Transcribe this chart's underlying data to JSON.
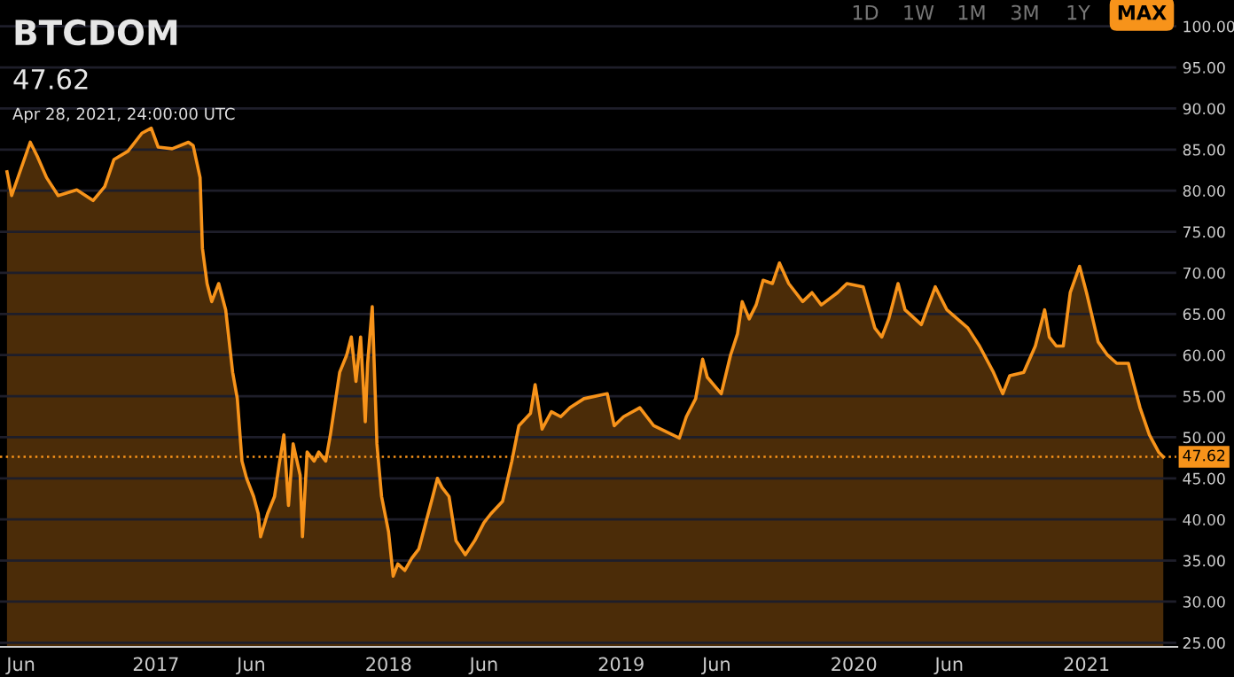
{
  "chart_data": {
    "type": "area",
    "title": "BTCDOM",
    "subtitle": "47.62",
    "annotations": [
      "Apr 28, 2021, 24:00:00 UTC",
      "1D",
      "1W",
      "1M",
      "3M",
      "1Y",
      "MAX"
    ],
    "x": [
      2016.36,
      2016.38,
      2016.46,
      2016.49,
      2016.53,
      2016.58,
      2016.66,
      2016.73,
      2016.78,
      2016.82,
      2016.88,
      2016.94,
      2016.98,
      2017.01,
      2017.07,
      2017.14,
      2017.16,
      2017.19,
      2017.2,
      2017.22,
      2017.24,
      2017.27,
      2017.3,
      2017.33,
      2017.35,
      2017.37,
      2017.39,
      2017.42,
      2017.44,
      2017.45,
      2017.48,
      2017.51,
      2017.53,
      2017.55,
      2017.57,
      2017.59,
      2017.62,
      2017.63,
      2017.65,
      2017.68,
      2017.7,
      2017.73,
      2017.75,
      2017.79,
      2017.82,
      2017.84,
      2017.86,
      2017.88,
      2017.9,
      2017.91,
      2017.93,
      2017.95,
      2017.97,
      2018.0,
      2018.02,
      2018.04,
      2018.07,
      2018.1,
      2018.13,
      2018.16,
      2018.19,
      2018.21,
      2018.23,
      2018.26,
      2018.29,
      2018.33,
      2018.37,
      2018.41,
      2018.44,
      2018.49,
      2018.53,
      2018.56,
      2018.61,
      2018.63,
      2018.66,
      2018.7,
      2018.74,
      2018.78,
      2018.84,
      2018.94,
      2018.97,
      2019.01,
      2019.08,
      2019.14,
      2019.25,
      2019.28,
      2019.32,
      2019.35,
      2019.37,
      2019.43,
      2019.47,
      2019.5,
      2019.52,
      2019.55,
      2019.58,
      2019.61,
      2019.65,
      2019.68,
      2019.72,
      2019.78,
      2019.82,
      2019.86,
      2019.93,
      2019.97,
      2020.04,
      2020.09,
      2020.12,
      2020.15,
      2020.19,
      2020.22,
      2020.29,
      2020.35,
      2020.4,
      2020.49,
      2020.54,
      2020.6,
      2020.64,
      2020.67,
      2020.73,
      2020.78,
      2020.82,
      2020.84,
      2020.87,
      2020.9,
      2020.93,
      2020.97,
      2021.0,
      2021.05,
      2021.09,
      2021.13,
      2021.18,
      2021.2,
      2021.23,
      2021.27,
      2021.31,
      2021.33
    ],
    "series": [
      {
        "color": "#f7931a",
        "values": [
          82.3,
          79.4,
          85.9,
          84.2,
          81.6,
          79.4,
          80.1,
          78.8,
          80.5,
          83.8,
          84.8,
          87.0,
          87.6,
          85.3,
          85.1,
          85.9,
          85.5,
          81.6,
          73.0,
          68.7,
          66.5,
          68.7,
          65.5,
          57.9,
          54.7,
          47.1,
          45.0,
          42.8,
          40.7,
          37.9,
          40.7,
          42.8,
          46.7,
          50.3,
          41.7,
          49.2,
          45.4,
          37.9,
          48.2,
          47.1,
          48.2,
          47.1,
          50.3,
          57.9,
          60.0,
          62.2,
          56.8,
          62.2,
          51.9,
          59.0,
          65.9,
          49.2,
          42.8,
          38.5,
          33.1,
          34.6,
          33.8,
          35.3,
          36.4,
          39.6,
          42.8,
          45.0,
          43.9,
          42.8,
          37.4,
          35.7,
          37.4,
          39.6,
          40.7,
          42.2,
          47.1,
          51.4,
          52.9,
          56.4,
          51.0,
          53.1,
          52.5,
          53.6,
          54.7,
          55.3,
          51.4,
          52.5,
          53.6,
          51.4,
          49.9,
          52.5,
          54.7,
          59.5,
          57.3,
          55.3,
          60.0,
          62.6,
          66.5,
          64.4,
          66.1,
          69.1,
          68.7,
          71.2,
          68.7,
          66.5,
          67.6,
          66.1,
          67.6,
          68.7,
          68.3,
          63.3,
          62.2,
          64.4,
          68.7,
          65.5,
          63.7,
          68.3,
          65.5,
          63.3,
          61.1,
          57.9,
          55.3,
          57.5,
          57.9,
          61.1,
          65.5,
          62.2,
          61.1,
          61.1,
          67.6,
          70.8,
          67.6,
          61.6,
          60.0,
          59.0,
          59.0,
          56.8,
          53.6,
          50.3,
          48.2,
          47.6
        ]
      }
    ],
    "xlim": [
      2016.33,
      2021.39
    ],
    "xticks": [
      {
        "value": 2016.42,
        "label": "Jun"
      },
      2017,
      {
        "value": 2017.41,
        "label": "Jun"
      },
      2018,
      {
        "value": 2018.41,
        "label": "Jun"
      },
      2019,
      {
        "value": 2019.41,
        "label": "Jun"
      },
      2020,
      {
        "value": 2020.41,
        "label": "Jun"
      },
      2021
    ],
    "ylim": [
      24.5,
      103.2
    ],
    "yticks": [
      {
        "value": 25,
        "label": "25.00"
      },
      {
        "value": 30,
        "label": "30.00"
      },
      {
        "value": 35,
        "label": "35.00"
      },
      {
        "value": 40,
        "label": "40.00"
      },
      {
        "value": 45,
        "label": "45.00"
      },
      {
        "value": 50,
        "label": "50.00"
      },
      {
        "value": 55,
        "label": "55.00"
      },
      {
        "value": 60,
        "label": "60.00"
      },
      {
        "value": 65,
        "label": "65.00"
      },
      {
        "value": 70,
        "label": "70.00"
      },
      {
        "value": 75,
        "label": "75.00"
      },
      {
        "value": 80,
        "label": "80.00"
      },
      {
        "value": 85,
        "label": "85.00"
      },
      {
        "value": 90,
        "label": "90.00"
      },
      {
        "value": 95,
        "label": "95.00"
      },
      {
        "value": 100,
        "label": "100.00"
      }
    ],
    "ref_lines": [
      {
        "axis": "y",
        "value": 47.62,
        "label": "47.62",
        "color": "#f7931a",
        "line_style": "dotted"
      }
    ],
    "grid": "y"
  }
}
